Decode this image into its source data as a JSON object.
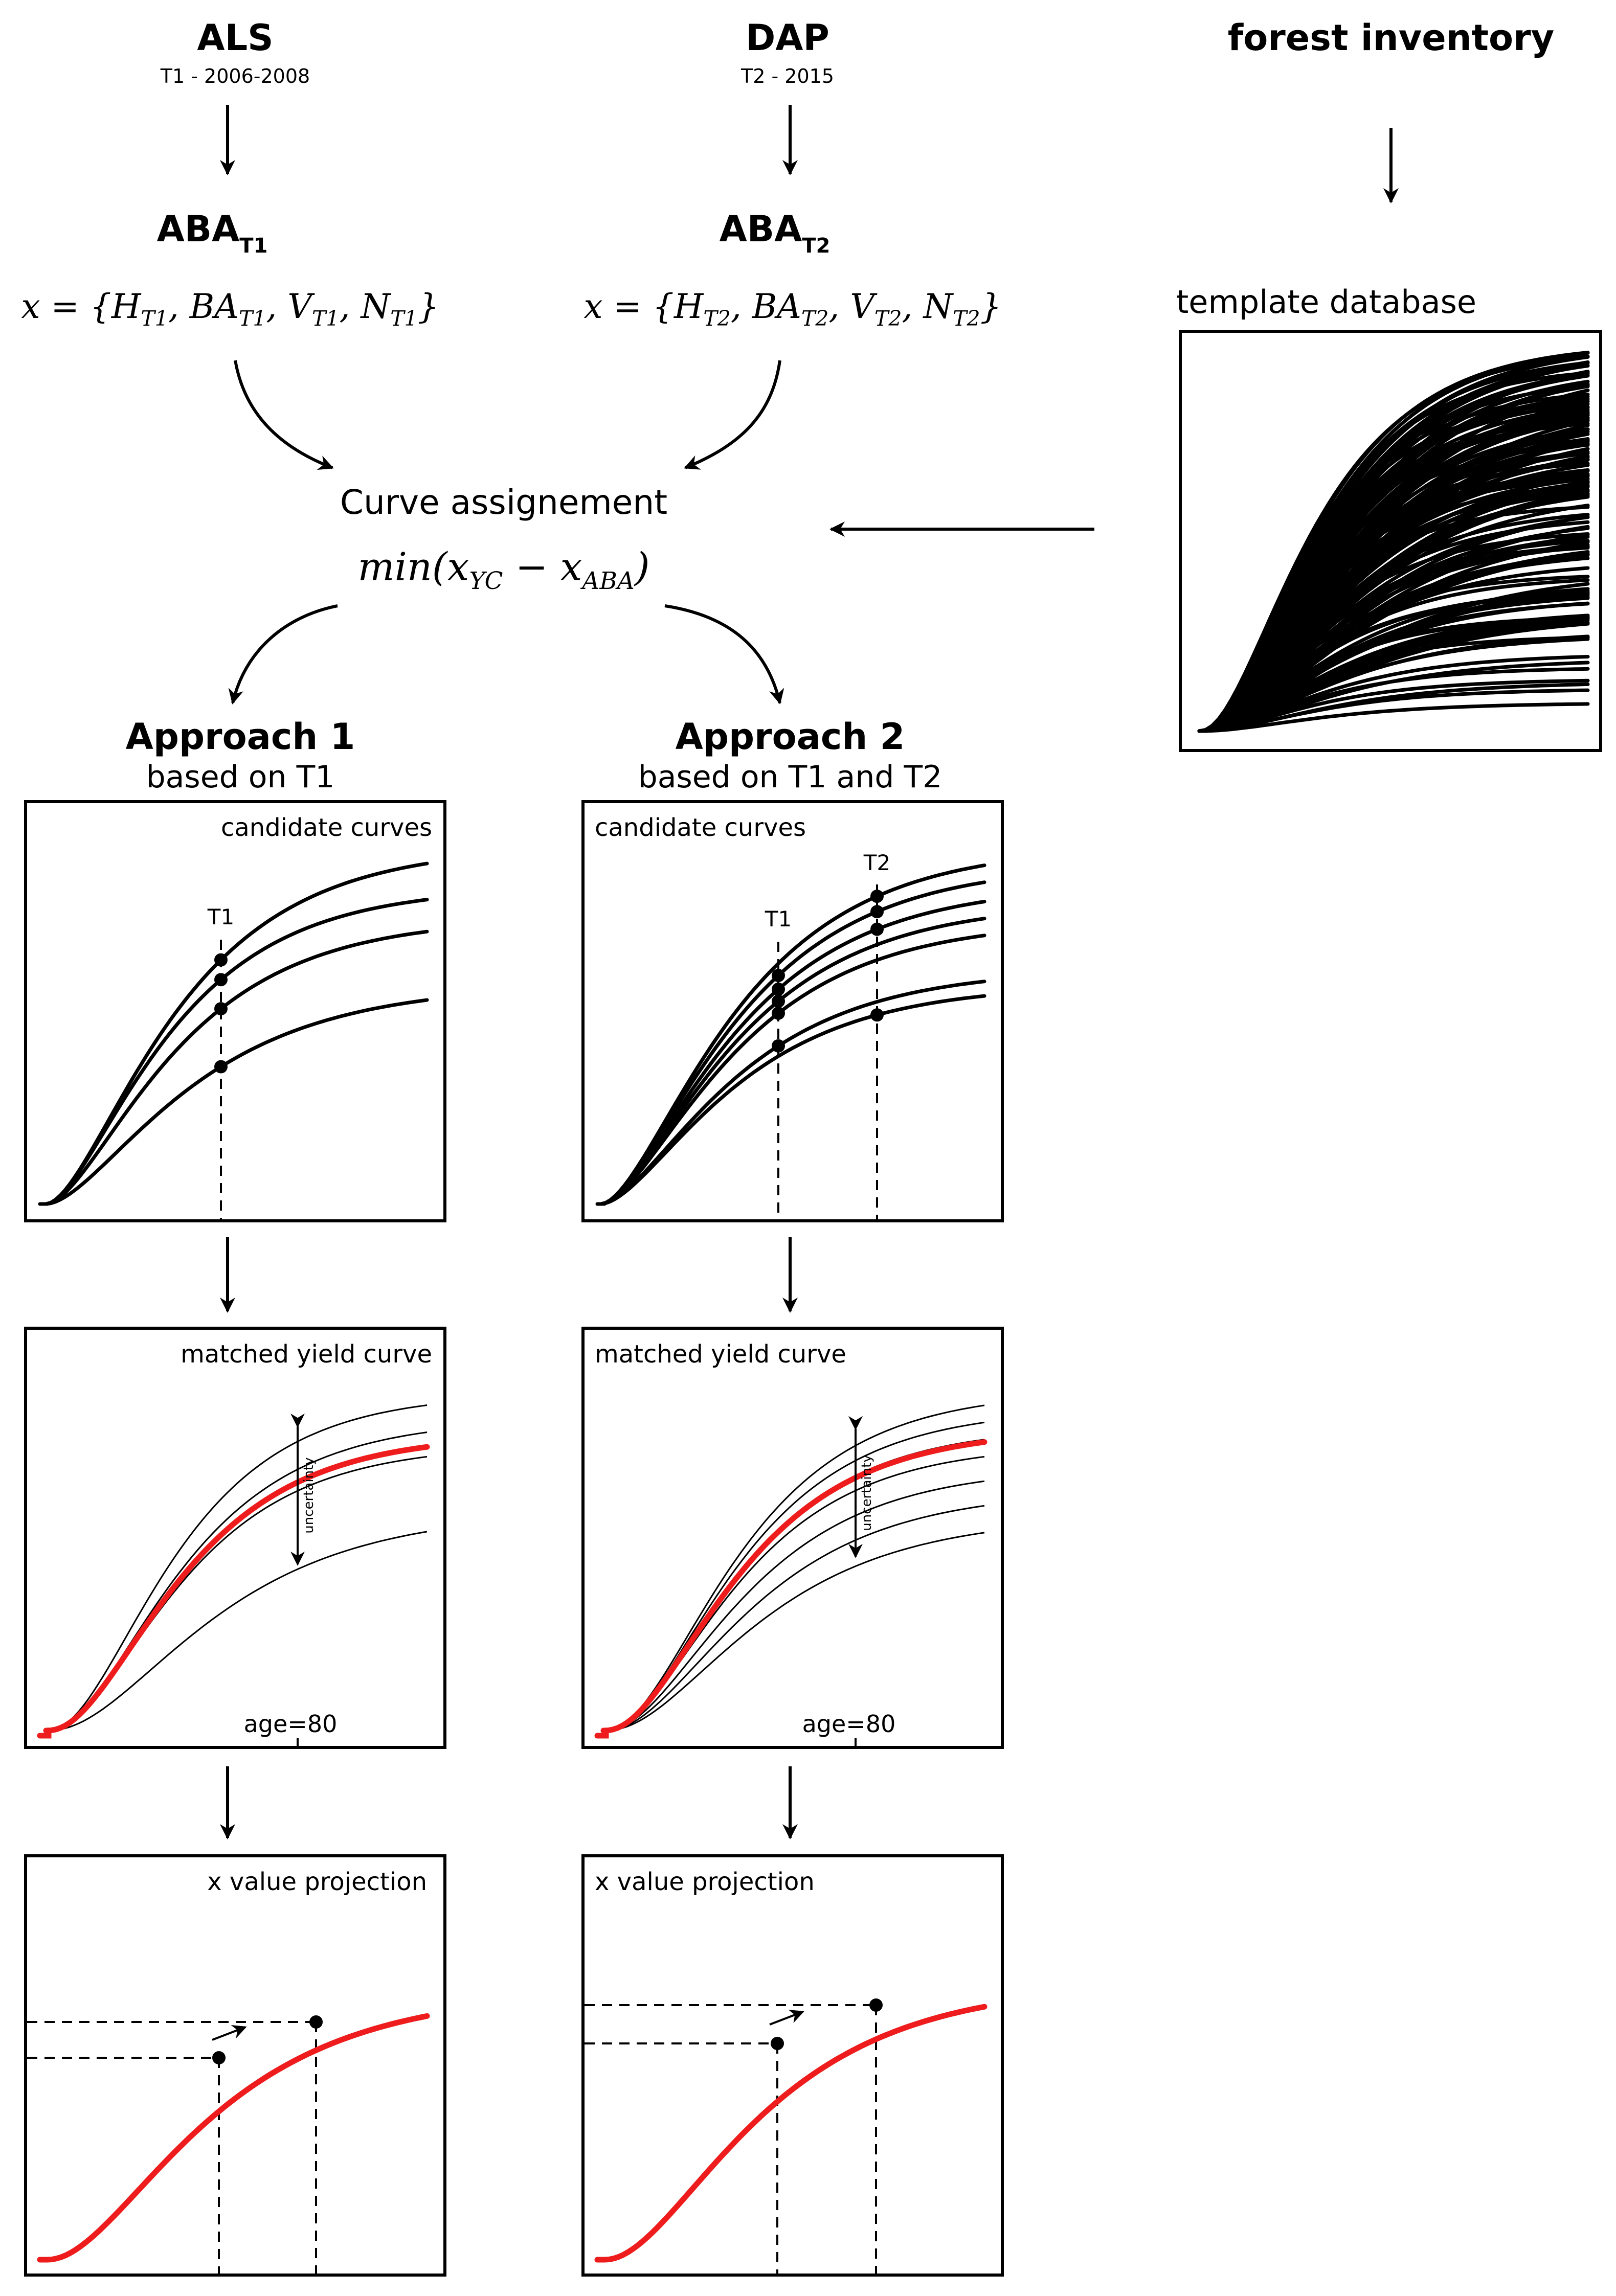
{
  "sources": {
    "als": {
      "title": "ALS",
      "subtitle": "T1 - 2006-2008"
    },
    "dap": {
      "title": "DAP",
      "subtitle": "T2 - 2015"
    },
    "inventory": {
      "title": "forest inventory"
    }
  },
  "aba": {
    "t1": {
      "main": "ABA",
      "sub": "T1",
      "formula": "x = {H_T1, BA_T1, V_T1, N_T1}"
    },
    "t2": {
      "main": "ABA",
      "sub": "T2",
      "formula": "x = {H_T2, BA_T2, V_T2, N_T2}"
    }
  },
  "template": {
    "title": "template database"
  },
  "assignment": {
    "title": "Curve assignement",
    "formula": "min(x_YC − x_ABA)"
  },
  "approaches": [
    {
      "title": "Approach 1",
      "subtitle": "based on T1"
    },
    {
      "title": "Approach 2",
      "subtitle": "based on T1 and T2"
    }
  ],
  "panels": {
    "candidate": {
      "label": "candidate curves",
      "t1": "T1",
      "t2": "T2"
    },
    "matched": {
      "label": "matched yield curve",
      "uncertainty": "uncertainty",
      "age": "age=80"
    },
    "projection": {
      "label": "x value projection"
    }
  },
  "colors": {
    "curve": "#000000",
    "matched": "#ee1c1c"
  }
}
